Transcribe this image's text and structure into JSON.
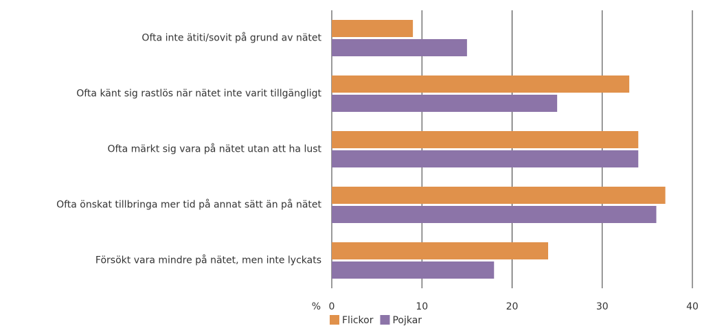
{
  "chart_data": {
    "type": "hbar",
    "categories": [
      "Ofta inte ätiti/sovit på grund av nätet",
      "Ofta känt sig rastlös när nätet inte varit tillgängligt",
      "Ofta märkt sig vara på nätet utan att ha lust",
      "Ofta önskat tillbringa mer tid på annat sätt än på nätet",
      "Försökt vara mindre på nätet, men inte lyckats"
    ],
    "series": [
      {
        "name": "Flickor",
        "color": "#e0914b",
        "values": [
          9,
          33,
          34,
          37,
          24
        ]
      },
      {
        "name": "Pojkar",
        "color": "#8c74a8",
        "values": [
          15,
          25,
          34,
          36,
          18
        ]
      }
    ],
    "x_unit": "%",
    "xlim": [
      0,
      40
    ],
    "xticks": [
      0,
      10,
      20,
      30,
      40
    ],
    "grid": true,
    "legend": "bottom"
  }
}
